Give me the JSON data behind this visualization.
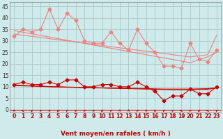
{
  "bg_color": "#ceeaea",
  "grid_color": "#aecece",
  "xlabel": "Vent moyen/en rafales ( km/h )",
  "x_ticks": [
    0,
    1,
    2,
    3,
    4,
    5,
    6,
    7,
    8,
    9,
    10,
    11,
    12,
    13,
    14,
    15,
    16,
    17,
    18,
    19,
    20,
    21,
    22,
    23
  ],
  "y_ticks": [
    0,
    5,
    10,
    15,
    20,
    25,
    30,
    35,
    40,
    45
  ],
  "ylim": [
    -1,
    47
  ],
  "xlim": [
    -0.5,
    23.5
  ],
  "rafales_data": [
    32,
    35,
    34,
    35,
    44,
    35,
    42,
    39,
    30,
    29,
    29,
    34,
    29,
    26,
    35,
    29,
    25,
    19,
    19,
    18,
    29,
    22,
    21,
    26
  ],
  "rafales_trend1": [
    34.5,
    33.8,
    33.1,
    32.4,
    31.7,
    31.0,
    30.3,
    29.6,
    28.9,
    28.2,
    27.5,
    26.8,
    26.1,
    25.4,
    24.7,
    24.0,
    23.3,
    22.6,
    21.9,
    21.2,
    20.5,
    21.8,
    23.1,
    25.0
  ],
  "rafales_trend2": [
    33.0,
    32.5,
    32.0,
    31.5,
    31.0,
    30.5,
    30.0,
    29.5,
    29.0,
    28.5,
    28.0,
    27.5,
    27.0,
    26.5,
    26.0,
    25.5,
    25.0,
    24.5,
    24.0,
    23.5,
    23.0,
    23.5,
    24.0,
    32.5
  ],
  "vent_data": [
    11,
    12,
    11,
    11,
    12,
    11,
    13,
    13,
    10,
    10,
    11,
    11,
    10,
    10,
    12,
    10,
    8,
    4,
    6,
    6,
    9,
    7,
    7,
    10
  ],
  "vent_trend1": [
    10.8,
    10.6,
    10.4,
    10.2,
    10.0,
    9.9,
    9.8,
    9.7,
    9.6,
    9.5,
    9.5,
    9.4,
    9.4,
    9.3,
    9.3,
    9.2,
    9.1,
    9.0,
    9.0,
    9.0,
    9.0,
    9.1,
    9.2,
    9.5
  ],
  "vent_trend2": [
    10.5,
    10.4,
    10.3,
    10.2,
    10.1,
    10.0,
    9.9,
    9.8,
    9.7,
    9.6,
    9.5,
    9.4,
    9.3,
    9.2,
    9.1,
    9.0,
    8.9,
    8.8,
    8.7,
    8.7,
    8.7,
    8.8,
    8.9,
    9.5
  ],
  "color_pink": "#f08080",
  "color_darkred": "#cc0000",
  "wind_dirs_angles": [
    90,
    180,
    270,
    135,
    135,
    225,
    135,
    135,
    135,
    135,
    225,
    135,
    90,
    90,
    135,
    90,
    270,
    135,
    135,
    180,
    135,
    225,
    180,
    135
  ],
  "marker_size": 2.5,
  "tick_fontsize": 5.5,
  "xlabel_fontsize": 6.5
}
